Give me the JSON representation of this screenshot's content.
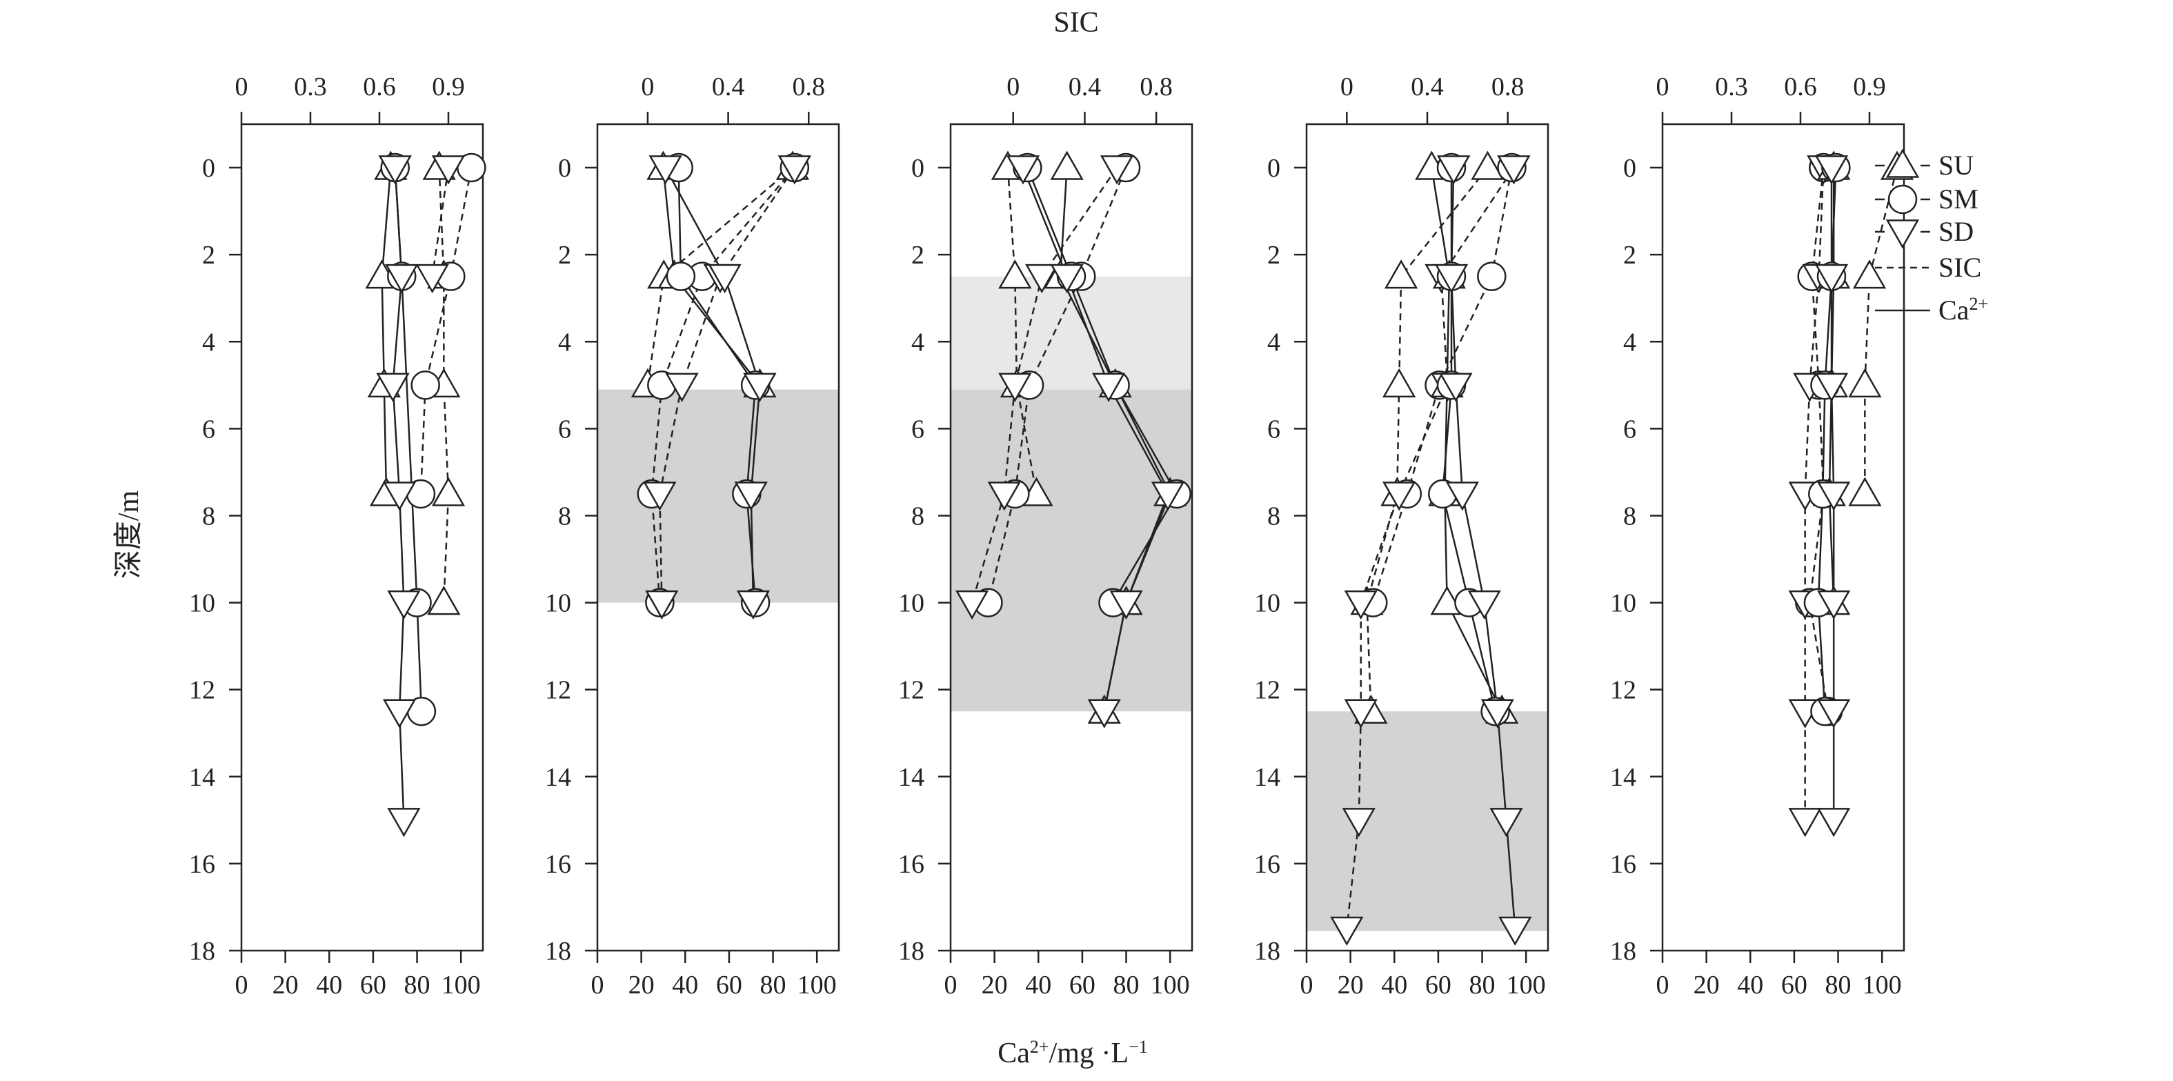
{
  "figure": {
    "top_axis_title": "SIC",
    "bottom_axis_title_main": "Ca",
    "bottom_axis_title_sup": "2+",
    "bottom_axis_title_tail": "/mg ·L",
    "bottom_axis_title_sup2": "−1",
    "y_axis_title": "深度/m"
  },
  "legend": {
    "items": [
      {
        "label": "SU",
        "marker": "triangle-up-icon",
        "style": "dashed"
      },
      {
        "label": "SM",
        "marker": "circle-icon",
        "style": "dashed"
      },
      {
        "label": "SD",
        "marker": "triangle-down-icon",
        "style": "dashed"
      },
      {
        "label": "SIC",
        "marker": "",
        "style": "dashed"
      },
      {
        "label": "Ca",
        "label_sup": "2+",
        "marker": "",
        "style": "solid"
      }
    ]
  },
  "chart_data": [
    {
      "type": "line",
      "panel": 1,
      "ylabel": "深度/m",
      "ylim": [
        18,
        -1
      ],
      "y_ticks": [
        0,
        2,
        4,
        6,
        8,
        10,
        12,
        14,
        16,
        18
      ],
      "top_axis": {
        "label": "SIC",
        "lim": [
          0,
          1.05
        ],
        "ticks": [
          0,
          0.3,
          0.6,
          0.9
        ],
        "tick_labels": [
          "0",
          "0.3",
          "0.6",
          "0.9"
        ]
      },
      "bottom_axis": {
        "label": "Ca2+/mg·L-1",
        "lim": [
          0,
          110
        ],
        "ticks": [
          0,
          20,
          40,
          60,
          80,
          100
        ],
        "tick_labels": [
          "0",
          "20",
          "40",
          "60",
          "80",
          "100"
        ]
      },
      "shaded": [],
      "series": [
        {
          "name": "SU",
          "quantity": "SIC",
          "marker": "triangle-up",
          "depth": [
            0,
            2.5,
            5,
            7.5,
            10
          ],
          "values": [
            0.86,
            0.88,
            0.88,
            0.9,
            0.88
          ]
        },
        {
          "name": "SM",
          "quantity": "SIC",
          "marker": "circle",
          "depth": [
            0,
            2.5,
            5,
            7.5
          ],
          "values": [
            1.0,
            0.91,
            0.8,
            0.78
          ]
        },
        {
          "name": "SD",
          "quantity": "SIC",
          "marker": "triangle-down",
          "depth": [
            0,
            2.5
          ],
          "values": [
            0.9,
            0.83
          ]
        },
        {
          "name": "SU",
          "quantity": "Ca2+",
          "marker": "triangle-up",
          "depth": [
            0,
            2.5,
            5,
            7.5
          ],
          "values": [
            68,
            64,
            65,
            66
          ]
        },
        {
          "name": "SM",
          "quantity": "Ca2+",
          "marker": "circle",
          "depth": [
            0,
            2.5,
            10,
            12.5
          ],
          "values": [
            70,
            73,
            80,
            82
          ]
        },
        {
          "name": "SD",
          "quantity": "Ca2+",
          "marker": "triangle-down",
          "depth": [
            0,
            2.5,
            5,
            7.5,
            10,
            12.5,
            15
          ],
          "values": [
            70,
            73,
            69,
            72,
            74,
            72,
            74
          ]
        }
      ]
    },
    {
      "type": "line",
      "panel": 2,
      "ylim": [
        18,
        -1
      ],
      "y_ticks": [
        0,
        2,
        4,
        6,
        8,
        10,
        12,
        14,
        16,
        18
      ],
      "top_axis": {
        "label": "SIC",
        "lim": [
          -0.25,
          0.95
        ],
        "ticks": [
          0,
          0.4,
          0.8
        ],
        "tick_labels": [
          "0",
          "0.4",
          "0.8"
        ]
      },
      "bottom_axis": {
        "label": "Ca2+/mg·L-1",
        "lim": [
          0,
          110
        ],
        "ticks": [
          0,
          20,
          40,
          60,
          80,
          100
        ],
        "tick_labels": [
          "0",
          "20",
          "40",
          "60",
          "80",
          "100"
        ]
      },
      "shaded": [
        {
          "from": 5.1,
          "to": 10,
          "shade": "medium"
        }
      ],
      "series": [
        {
          "name": "SU",
          "quantity": "SIC",
          "marker": "triangle-up",
          "depth": [
            0,
            2.5,
            5
          ],
          "values": [
            0.72,
            0.08,
            0.0
          ]
        },
        {
          "name": "SM",
          "quantity": "SIC",
          "marker": "circle",
          "depth": [
            0,
            2.5,
            5,
            7.5,
            10
          ],
          "values": [
            0.73,
            0.27,
            0.07,
            0.02,
            0.06
          ]
        },
        {
          "name": "SD",
          "quantity": "SIC",
          "marker": "triangle-down",
          "depth": [
            0,
            2.5,
            5,
            7.5,
            10
          ],
          "values": [
            0.73,
            0.36,
            0.17,
            0.06,
            0.07
          ]
        },
        {
          "name": "SU",
          "quantity": "Ca2+",
          "marker": "triangle-up",
          "depth": [
            0,
            2.5,
            5
          ],
          "values": [
            30,
            35,
            74
          ]
        },
        {
          "name": "SM",
          "quantity": "Ca2+",
          "marker": "circle",
          "depth": [
            0,
            2.5,
            5,
            7.5,
            10
          ],
          "values": [
            37,
            38,
            72,
            68,
            72
          ]
        },
        {
          "name": "SD",
          "quantity": "Ca2+",
          "marker": "triangle-down",
          "depth": [
            0,
            2.5,
            5,
            7.5,
            10
          ],
          "values": [
            31,
            58,
            74,
            70,
            71
          ]
        }
      ]
    },
    {
      "type": "line",
      "panel": 3,
      "ylim": [
        18,
        -1
      ],
      "y_ticks": [
        0,
        2,
        4,
        6,
        8,
        10,
        12,
        14,
        16,
        18
      ],
      "top_axis": {
        "label": "SIC",
        "lim": [
          -0.35,
          1.0
        ],
        "ticks": [
          0,
          0.4,
          0.8
        ],
        "tick_labels": [
          "0",
          "0.4",
          "0.8"
        ]
      },
      "bottom_axis": {
        "label": "Ca2+/mg·L-1",
        "lim": [
          0,
          110
        ],
        "ticks": [
          0,
          20,
          40,
          60,
          80,
          100
        ],
        "tick_labels": [
          "0",
          "20",
          "40",
          "60",
          "80",
          "100"
        ]
      },
      "shaded": [
        {
          "from": 2.5,
          "to": 5.1,
          "shade": "light"
        },
        {
          "from": 5.1,
          "to": 12.5,
          "shade": "medium"
        }
      ],
      "series": [
        {
          "name": "SU",
          "quantity": "SIC",
          "marker": "triangle-up",
          "depth": [
            0,
            2.5,
            5,
            7.5
          ],
          "values": [
            -0.03,
            0.01,
            0.02,
            0.13
          ]
        },
        {
          "name": "SM",
          "quantity": "SIC",
          "marker": "circle",
          "depth": [
            0,
            2.5,
            5,
            7.5,
            10
          ],
          "values": [
            0.63,
            0.38,
            0.09,
            0.01,
            -0.14
          ]
        },
        {
          "name": "SD",
          "quantity": "SIC",
          "marker": "triangle-down",
          "depth": [
            0,
            2.5,
            5,
            7.5,
            10
          ],
          "values": [
            0.58,
            0.16,
            0.01,
            -0.05,
            -0.23
          ]
        },
        {
          "name": "SU",
          "quantity": "Ca2+",
          "marker": "triangle-up",
          "depth": [
            0,
            2.5,
            5,
            7.5,
            10,
            12.5
          ],
          "values": [
            53,
            50,
            75,
            100,
            80,
            70
          ]
        },
        {
          "name": "SM",
          "quantity": "Ca2+",
          "marker": "circle",
          "depth": [
            0,
            2.5,
            5,
            7.5,
            10
          ],
          "values": [
            35,
            55,
            75,
            103,
            74
          ]
        },
        {
          "name": "SD",
          "quantity": "Ca2+",
          "marker": "triangle-down",
          "depth": [
            0,
            2.5,
            5,
            7.5,
            10,
            12.5
          ],
          "values": [
            33,
            53,
            72,
            99,
            80,
            70
          ]
        }
      ]
    },
    {
      "type": "line",
      "panel": 4,
      "ylim": [
        18,
        -1
      ],
      "y_ticks": [
        0,
        2,
        4,
        6,
        8,
        10,
        12,
        14,
        16,
        18
      ],
      "top_axis": {
        "label": "SIC",
        "lim": [
          -0.2,
          1.0
        ],
        "ticks": [
          0,
          0.4,
          0.8
        ],
        "tick_labels": [
          "0",
          "0.4",
          "0.8"
        ]
      },
      "bottom_axis": {
        "label": "Ca2+/mg·L-1",
        "lim": [
          0,
          110
        ],
        "ticks": [
          0,
          20,
          40,
          60,
          80,
          100
        ],
        "tick_labels": [
          "0",
          "20",
          "40",
          "60",
          "80",
          "100"
        ]
      },
      "shaded": [
        {
          "from": 12.5,
          "to": 17.55,
          "shade": "medium"
        }
      ],
      "series": [
        {
          "name": "SU",
          "quantity": "SIC",
          "marker": "triangle-up",
          "depth": [
            0,
            2.5,
            5,
            7.5,
            10,
            12.5
          ],
          "values": [
            0.7,
            0.27,
            0.26,
            0.25,
            0.1,
            0.12
          ]
        },
        {
          "name": "SM",
          "quantity": "SIC",
          "marker": "circle",
          "depth": [
            0,
            2.5,
            5,
            7.5,
            10
          ],
          "values": [
            0.82,
            0.72,
            0.46,
            0.3,
            0.13
          ]
        },
        {
          "name": "SD",
          "quantity": "SIC",
          "marker": "triangle-down",
          "depth": [
            0,
            2.5,
            5,
            7.5,
            10,
            12.5,
            15,
            17.5
          ],
          "values": [
            0.83,
            0.47,
            0.5,
            0.26,
            0.07,
            0.07,
            0.06,
            0.0
          ]
        },
        {
          "name": "SU",
          "quantity": "Ca2+",
          "marker": "triangle-up",
          "depth": [
            0,
            2.5,
            5,
            7.5,
            10,
            12.5
          ],
          "values": [
            57,
            65,
            64,
            63,
            64,
            89
          ]
        },
        {
          "name": "SM",
          "quantity": "Ca2+",
          "marker": "circle",
          "depth": [
            0,
            2.5,
            5,
            7.5,
            10,
            12.5
          ],
          "values": [
            66,
            66,
            66,
            62,
            74,
            86
          ]
        },
        {
          "name": "SD",
          "quantity": "Ca2+",
          "marker": "triangle-down",
          "depth": [
            0,
            2.5,
            5,
            7.5,
            10,
            12.5,
            15,
            17.5
          ],
          "values": [
            67,
            66,
            68,
            71,
            81,
            87,
            91,
            95
          ]
        }
      ]
    },
    {
      "type": "line",
      "panel": 5,
      "ylim": [
        18,
        -1
      ],
      "y_ticks": [
        0,
        2,
        4,
        6,
        8,
        10,
        12,
        14,
        16,
        18
      ],
      "top_axis": {
        "label": "SIC",
        "lim": [
          0,
          1.05
        ],
        "ticks": [
          0,
          0.3,
          0.6,
          0.9
        ],
        "tick_labels": [
          "0",
          "0.3",
          "0.6",
          "0.9"
        ]
      },
      "bottom_axis": {
        "label": "Ca2+/mg·L-1",
        "lim": [
          0,
          110
        ],
        "ticks": [
          0,
          20,
          40,
          60,
          80,
          100
        ],
        "tick_labels": [
          "0",
          "20",
          "40",
          "60",
          "80",
          "100"
        ]
      },
      "shaded": [],
      "series": [
        {
          "name": "SU",
          "quantity": "SIC",
          "marker": "triangle-up",
          "depth": [
            0,
            2.5,
            5,
            7.5
          ],
          "values": [
            1.02,
            0.9,
            0.88,
            0.88
          ]
        },
        {
          "name": "SM",
          "quantity": "SIC",
          "marker": "circle",
          "depth": [
            0,
            2.5,
            5,
            7.5,
            10,
            12.5
          ],
          "values": [
            0.7,
            0.65,
            0.68,
            0.7,
            0.64,
            0.72
          ]
        },
        {
          "name": "SD",
          "quantity": "SIC",
          "marker": "triangle-down",
          "depth": [
            0,
            2.5,
            5,
            7.5,
            10,
            12.5,
            15
          ],
          "values": [
            0.7,
            0.68,
            0.64,
            0.62,
            0.62,
            0.62,
            0.62
          ]
        },
        {
          "name": "SU",
          "quantity": "Ca2+",
          "marker": "triangle-up",
          "depth": [
            0,
            2.5,
            5,
            7.5,
            10
          ],
          "values": [
            78,
            78,
            77,
            76,
            78
          ]
        },
        {
          "name": "SM",
          "quantity": "Ca2+",
          "marker": "circle",
          "depth": [
            0,
            2.5,
            5,
            7.5,
            10,
            12.5
          ],
          "values": [
            79,
            77,
            74,
            73,
            71,
            74
          ]
        },
        {
          "name": "SD",
          "quantity": "Ca2+",
          "marker": "triangle-down",
          "depth": [
            0,
            2.5,
            5,
            7.5,
            10,
            12.5,
            15
          ],
          "values": [
            77,
            77,
            77,
            78,
            78,
            78,
            78
          ]
        }
      ]
    }
  ]
}
